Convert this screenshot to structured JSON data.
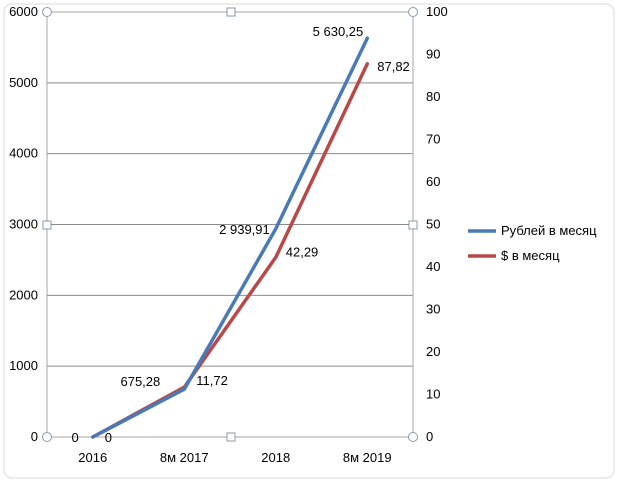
{
  "chart_data": {
    "type": "line",
    "categories": [
      "2016",
      "8м 2017",
      "2018",
      "8м 2019"
    ],
    "y_left": {
      "min": 0,
      "max": 6000,
      "ticks": [
        "0",
        "1000",
        "2000",
        "3000",
        "4000",
        "5000",
        "6000"
      ]
    },
    "y_right": {
      "min": 0,
      "max": 100,
      "ticks": [
        "0",
        "10",
        "20",
        "30",
        "40",
        "50",
        "60",
        "70",
        "80",
        "90",
        "100"
      ]
    },
    "grid": true,
    "legend_position": "right",
    "series": [
      {
        "name": "Рублей в месяц",
        "axis": "left",
        "color": "#4a7ab5",
        "values": [
          0,
          675.28,
          2939.91,
          5630.25
        ],
        "labels": [
          "0",
          "675,28",
          "2 939,91",
          "5 630,25"
        ]
      },
      {
        "name": "$ в месяц",
        "axis": "right",
        "color": "#b94848",
        "values": [
          0,
          11.72,
          42.29,
          87.82
        ],
        "labels": [
          "0",
          "11,72",
          "42,29",
          "87,82"
        ]
      }
    ]
  }
}
